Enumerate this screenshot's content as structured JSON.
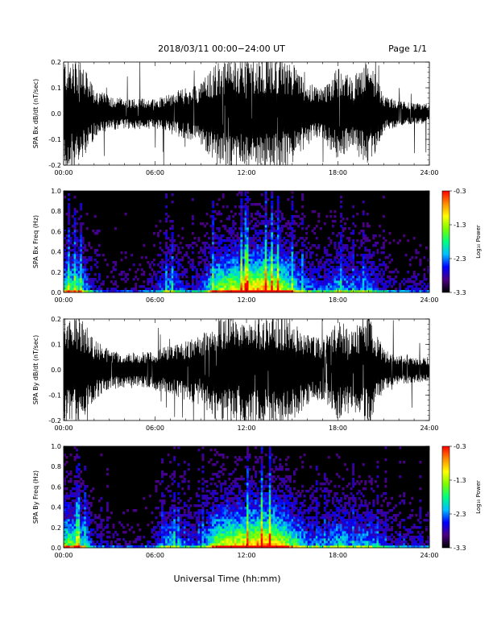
{
  "header": {
    "title": "2018/03/11   00:00−24:00 UT",
    "page": "Page 1/1"
  },
  "footer": {
    "xlabel": "Universal Time (hh:mm)"
  },
  "colors": {
    "trace": "#000000",
    "spectrogram_background": "#000000"
  },
  "colorbar": {
    "label": "Log₁₀ Power",
    "ticks": [
      "-0.3",
      "-1.3",
      "-2.3",
      "-3.3"
    ],
    "range": [
      -3.3,
      -0.3
    ],
    "colormap": [
      "#000000",
      "#4b0082",
      "#0000ff",
      "#00bfff",
      "#00ff7f",
      "#7cfc00",
      "#ffff00",
      "#ff8c00",
      "#ff0000"
    ]
  },
  "chart_data": [
    {
      "type": "line",
      "ylabel": "SPA Bx dB/dt (nT/sec)",
      "xlim": [
        0,
        24
      ],
      "ylim": [
        -0.2,
        0.2
      ],
      "x_ticks": [
        "00:00",
        "06:00",
        "12:00",
        "18:00",
        "24:00"
      ],
      "y_ticks": [
        "0.2",
        "0.1",
        "0.0",
        "-0.1",
        "-0.2"
      ],
      "envelope_hours": [
        0,
        1,
        2,
        3,
        4,
        5,
        6,
        7,
        8,
        9,
        10,
        11,
        12,
        13,
        14,
        15,
        16,
        17,
        18,
        19,
        20,
        21,
        22,
        23,
        24
      ],
      "envelope_amplitude": [
        0.22,
        0.22,
        0.1,
        0.07,
        0.06,
        0.06,
        0.06,
        0.08,
        0.1,
        0.12,
        0.2,
        0.22,
        0.22,
        0.22,
        0.22,
        0.2,
        0.12,
        0.1,
        0.18,
        0.14,
        0.22,
        0.07,
        0.05,
        0.04,
        0.04
      ]
    },
    {
      "type": "heatmap",
      "ylabel": "SPA Bx Freq (Hz)",
      "xlim": [
        0,
        24
      ],
      "ylim": [
        0.0,
        1.0
      ],
      "x_ticks": [
        "00:00",
        "06:00",
        "12:00",
        "18:00",
        "24:00"
      ],
      "y_ticks": [
        "1.0",
        "0.8",
        "0.6",
        "0.4",
        "0.2",
        "0.0"
      ],
      "activity_hours": [
        0,
        1,
        2,
        3,
        4,
        5,
        6,
        7,
        8,
        9,
        10,
        11,
        12,
        13,
        14,
        15,
        16,
        17,
        18,
        19,
        20,
        21,
        22,
        23,
        24
      ],
      "activity_level": [
        0.6,
        0.6,
        0.15,
        0.1,
        0.1,
        0.1,
        0.2,
        0.45,
        0.2,
        0.25,
        0.7,
        0.8,
        0.9,
        1.0,
        0.85,
        0.6,
        0.35,
        0.3,
        0.45,
        0.35,
        0.4,
        0.2,
        0.15,
        0.15,
        0.15
      ]
    },
    {
      "type": "line",
      "ylabel": "SPA By dB/dt (nT/sec)",
      "xlim": [
        0,
        24
      ],
      "ylim": [
        -0.2,
        0.2
      ],
      "x_ticks": [
        "00:00",
        "06:00",
        "12:00",
        "18:00",
        "24:00"
      ],
      "y_ticks": [
        "0.2",
        "0.1",
        "0.0",
        "-0.1",
        "-0.2"
      ],
      "envelope_hours": [
        0,
        1,
        2,
        3,
        4,
        5,
        6,
        7,
        8,
        9,
        10,
        11,
        12,
        13,
        14,
        15,
        16,
        17,
        18,
        19,
        20,
        21,
        22,
        23,
        24
      ],
      "envelope_amplitude": [
        0.22,
        0.22,
        0.12,
        0.08,
        0.07,
        0.07,
        0.08,
        0.1,
        0.12,
        0.14,
        0.2,
        0.22,
        0.22,
        0.22,
        0.22,
        0.2,
        0.14,
        0.12,
        0.2,
        0.16,
        0.22,
        0.08,
        0.06,
        0.05,
        0.05
      ]
    },
    {
      "type": "heatmap",
      "ylabel": "SPA By Freq (Hz)",
      "xlim": [
        0,
        24
      ],
      "ylim": [
        0.0,
        1.0
      ],
      "x_ticks": [
        "00:00",
        "06:00",
        "12:00",
        "18:00",
        "24:00"
      ],
      "y_ticks": [
        "1.0",
        "0.8",
        "0.6",
        "0.4",
        "0.2",
        "0.0"
      ],
      "activity_hours": [
        0,
        1,
        2,
        3,
        4,
        5,
        6,
        7,
        8,
        9,
        10,
        11,
        12,
        13,
        14,
        15,
        16,
        17,
        18,
        19,
        20,
        21,
        22,
        23,
        24
      ],
      "activity_level": [
        0.7,
        0.65,
        0.2,
        0.12,
        0.1,
        0.1,
        0.2,
        0.5,
        0.25,
        0.3,
        0.75,
        0.85,
        0.9,
        1.0,
        0.9,
        0.65,
        0.4,
        0.35,
        0.5,
        0.4,
        0.45,
        0.25,
        0.2,
        0.18,
        0.18
      ]
    }
  ]
}
